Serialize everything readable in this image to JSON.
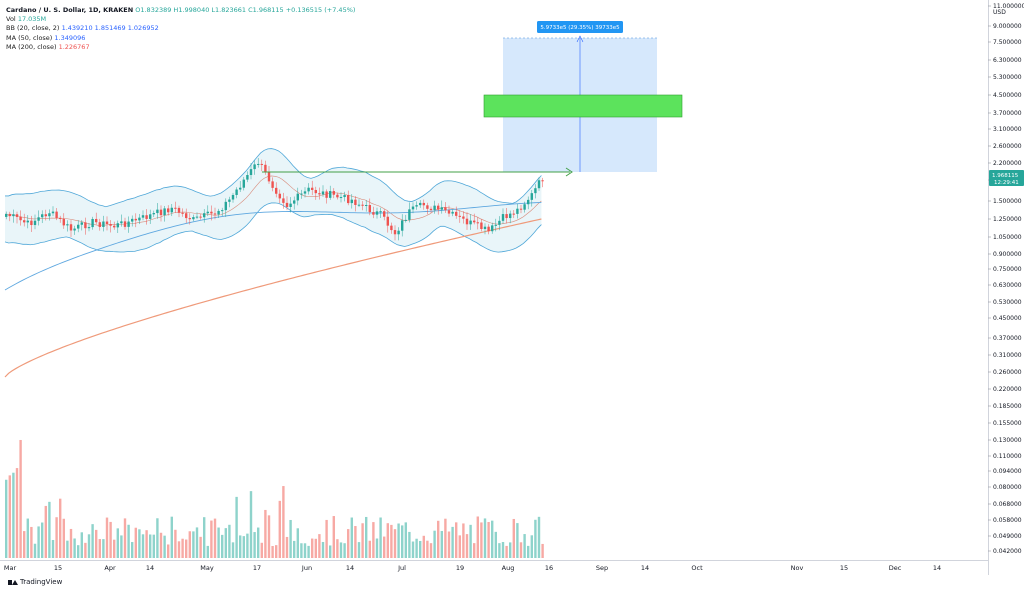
{
  "legend": {
    "symbol": "Cardano / U. S. Dollar, 1D, KRAKEN",
    "ohlc": "O1.832389 H1.998040 L1.823661 C1.968115 +0.136515 (+7.45%)",
    "vol_label": "Vol",
    "vol_value": "17.035M",
    "bb_label": "BB (20, close, 2)",
    "bb_values": "1.439210 1.851469 1.026952",
    "ma50_label": "MA (50, close)",
    "ma50_value": "1.349096",
    "ma200_label": "MA (200, close)",
    "ma200_value": "1.226767"
  },
  "price_axis": {
    "unit": "USD",
    "ticks": [
      "11.000000",
      "9.000000",
      "7.500000",
      "6.300000",
      "5.300000",
      "4.500000",
      "3.700000",
      "3.100000",
      "2.600000",
      "2.200000",
      "1.800000",
      "1.500000",
      "1.250000",
      "1.050000",
      "0.900000",
      "0.750000",
      "0.630000",
      "0.530000",
      "0.450000",
      "0.370000",
      "0.310000",
      "0.260000",
      "0.220000",
      "0.185000",
      "0.155000",
      "0.130000",
      "0.110000",
      "0.094000",
      "0.080000",
      "0.068000",
      "0.058000",
      "0.049000",
      "0.042000"
    ],
    "last_price": "1.968115",
    "last_countdown": "12:29:41"
  },
  "time_axis": {
    "ticks": [
      "Mar",
      "15",
      "Apr",
      "14",
      "May",
      "17",
      "Jun",
      "14",
      "Jul",
      "19",
      "Aug",
      "16",
      "Sep",
      "14",
      "Oct",
      "Nov",
      "15",
      "Dec",
      "14"
    ]
  },
  "measure": {
    "label": "5.9733e5 (29.35%) 39733e5"
  },
  "footer": {
    "brand": "TradingView"
  },
  "colors": {
    "up": "#26a69a",
    "down": "#ef5350",
    "bb_band": "#2196f3",
    "ma200": "#ef9a7a",
    "measure_box": "#cfe4fb",
    "target_zone": "#5ce35c"
  },
  "chart_data": {
    "type": "candlestick",
    "title": "Cardano / U. S. Dollar, 1D, KRAKEN",
    "scale": "log",
    "price_range": [
      0.04,
      11.0
    ],
    "time_range": [
      "2021-03-01",
      "2021-12-20"
    ],
    "series": [
      {
        "name": "BB (20, close, 2)",
        "values": ""
      },
      {
        "name": "MA (50, close)",
        "values": ""
      },
      {
        "name": "MA (200, close)",
        "values": ""
      }
    ],
    "last_close": 1.968115,
    "annotations": [
      {
        "type": "measure",
        "label": "5.9733e5 (29.35%) 39733e5"
      },
      {
        "type": "resistance-line",
        "price": 2.0
      },
      {
        "type": "target-zone",
        "price_low": 3.8,
        "price_high": 4.6
      }
    ]
  }
}
